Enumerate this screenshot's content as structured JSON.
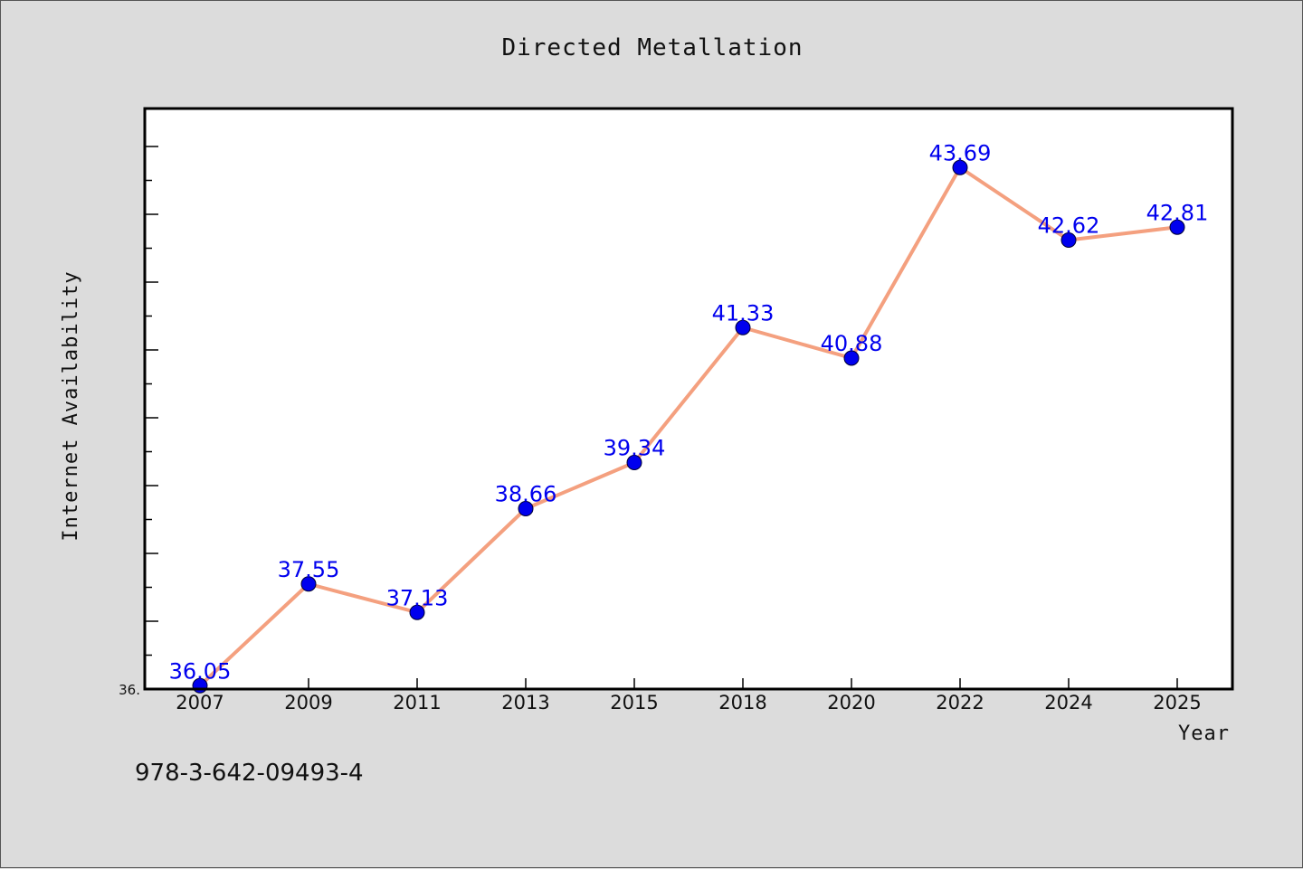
{
  "chart_data": {
    "type": "line",
    "title": "Directed Metallation",
    "xlabel": "Year",
    "ylabel": "Internet Availability",
    "categories": [
      "2007",
      "2009",
      "2011",
      "2013",
      "2015",
      "2018",
      "2020",
      "2022",
      "2024",
      "2025"
    ],
    "series": [
      {
        "values": [
          36.05,
          37.55,
          37.13,
          38.66,
          39.34,
          41.33,
          40.88,
          43.69,
          42.62,
          42.81
        ],
        "labels": [
          "36.05",
          "37.55",
          "37.13",
          "38.66",
          "39.34",
          "41.33",
          "40.88",
          "43.69",
          "42.62",
          "42.81"
        ]
      }
    ],
    "ylim": [
      36.0,
      44.5
    ],
    "y_tick_label": "36.",
    "grid": false,
    "line_color": "#f4a07f",
    "marker_color": "#0000ee",
    "label_color": "#0000ee"
  },
  "footer": {
    "isbn": "978-3-642-09493-4"
  }
}
